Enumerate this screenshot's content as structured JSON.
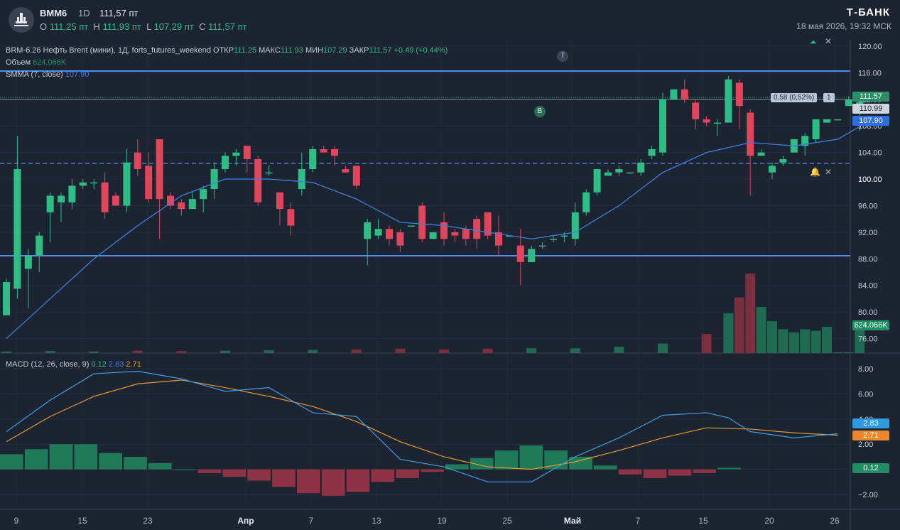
{
  "header": {
    "symbol": "BMM6",
    "timeframe": "1D",
    "last_price": "111,57 пт",
    "ohlc": {
      "o_label": "O",
      "o_value": "111,25 пт",
      "h_label": "H",
      "h_value": "111,93 пт",
      "l_label": "L",
      "l_value": "107,29 пт",
      "c_label": "C",
      "c_value": "111,57 пт"
    },
    "brand": "Т-БАНК",
    "datetime": "18 мая 2026, 19:32 МСК"
  },
  "legend": {
    "main": "BRM-6.26 Нефть Brent (мини), 1Д, forts_futures_weekend",
    "open_label": "ОТКР",
    "open_value": "111.25",
    "high_label": "МАКС",
    "high_value": "111.93",
    "low_label": "МИН",
    "low_value": "107.29",
    "close_label": "ЗАКР",
    "close_value": "111.57",
    "change": "+0.49 (+0.44%)",
    "volume_label": "Объем",
    "volume_value": "624.066K",
    "smma_label": "SMMA (7, close)",
    "smma_value": "107.90",
    "macd_label": "MACD (12, 26, close, 9)",
    "macd_hist": "0.12",
    "macd_line": "2.83",
    "macd_signal": "2.71"
  },
  "price_axis": [
    "120.00",
    "116.00",
    "112.00",
    "108.00",
    "104.00",
    "100.00",
    "96.00",
    "92.00",
    "88.00",
    "84.00",
    "80.00",
    "76.00"
  ],
  "price_tags": {
    "close": "111.57",
    "mid": "110.99",
    "smma": "107.90",
    "volume": "624.066K",
    "spread": "0,58 (0,52%)",
    "spread_count": "1",
    "alert_level": "100.00"
  },
  "macd_axis": [
    "8.00",
    "6.00",
    "4.00",
    "2.00",
    "−2.00"
  ],
  "macd_tags": {
    "line": "2.83",
    "signal": "2.71",
    "hist": "0.12"
  },
  "time_axis": [
    "9",
    "15",
    "23",
    "Апр",
    "7",
    "13",
    "19",
    "25",
    "Май",
    "7",
    "15",
    "20",
    "26"
  ],
  "markers": {
    "t": "T",
    "b": "B"
  },
  "colors": {
    "bg": "#1c2331",
    "up": "#2dbd85",
    "down": "#e0455b",
    "blue": "#3d7fe0",
    "orange": "#e89a2c",
    "level": "#4f8cf0"
  },
  "chart_data": {
    "type": "candlestick",
    "title": "BRM-6.26 Нефть Brent (мини), 1Д, forts_futures_weekend",
    "x_ticks": [
      "9",
      "15",
      "23",
      "Апр",
      "7",
      "13",
      "19",
      "25",
      "Май",
      "7",
      "15",
      "20",
      "26"
    ],
    "ylim": [
      76,
      121
    ],
    "candles": [
      [
        79.5,
        84.5,
        79.5,
        85
      ],
      [
        83.5,
        101.5,
        82,
        106.5
      ],
      [
        86.5,
        88.5,
        80.5,
        89.5
      ],
      [
        88.5,
        91.5,
        86,
        92
      ],
      [
        95,
        97.5,
        90.5,
        98
      ],
      [
        96.5,
        97.5,
        93.5,
        98
      ],
      [
        96.5,
        99,
        95.5,
        100
      ],
      [
        99,
        99.5,
        98.5,
        100
      ],
      [
        99.5,
        99.5,
        98.5,
        100
      ],
      [
        99.5,
        95,
        94,
        101
      ],
      [
        97.5,
        96,
        96,
        98
      ],
      [
        96,
        102.5,
        95,
        104.5
      ],
      [
        104,
        101.5,
        100.5,
        106
      ],
      [
        102,
        97,
        96.5,
        104
      ],
      [
        106,
        97,
        91,
        106
      ],
      [
        97.5,
        96,
        95.5,
        98
      ],
      [
        96.5,
        95.5,
        94.5,
        97
      ],
      [
        95.5,
        97,
        95.5,
        98
      ],
      [
        97,
        98.5,
        95,
        99
      ],
      [
        98.5,
        101.5,
        97,
        102.5
      ],
      [
        101.5,
        103.5,
        101,
        104
      ],
      [
        103.5,
        104,
        102,
        104.5
      ],
      [
        105,
        103,
        101,
        105
      ],
      [
        103,
        96.5,
        96,
        103.5
      ],
      [
        101,
        101,
        100.5,
        102
      ],
      [
        98,
        95.5,
        93,
        98
      ],
      [
        95.5,
        93,
        91.5,
        96.5
      ],
      [
        98.5,
        101.5,
        97.5,
        104
      ],
      [
        101.5,
        104.5,
        101,
        105
      ],
      [
        104.5,
        104,
        104,
        105
      ],
      [
        104.5,
        103.5,
        102,
        105
      ],
      [
        101.5,
        101,
        101,
        102
      ],
      [
        102,
        99,
        98.5,
        102
      ],
      [
        91,
        93.5,
        87,
        94
      ],
      [
        91.5,
        92.5,
        91,
        94
      ],
      [
        92.5,
        91,
        90,
        93
      ],
      [
        92,
        90,
        89,
        92.5
      ],
      [
        93,
        93,
        93,
        93
      ],
      [
        96,
        91,
        90.5,
        96.5
      ],
      [
        91,
        92,
        91,
        92
      ],
      [
        93.5,
        91,
        90,
        95
      ],
      [
        92,
        91.5,
        90.5,
        92.5
      ],
      [
        92.5,
        91,
        90,
        93
      ],
      [
        94,
        91,
        89.5,
        94.5
      ],
      [
        95,
        91.5,
        91,
        95
      ],
      [
        92,
        90,
        88.5,
        94.5
      ],
      [
        91.5,
        91.5,
        91.5,
        91.5
      ],
      [
        90,
        87.5,
        84,
        92.5
      ],
      [
        87.5,
        89.5,
        87.5,
        90
      ],
      [
        90,
        90,
        89.5,
        90.5
      ],
      [
        91,
        91,
        90.5,
        91.5
      ],
      [
        91.5,
        91.5,
        90.5,
        92
      ],
      [
        91,
        95,
        90,
        96.5
      ],
      [
        95,
        98,
        94.5,
        98.5
      ],
      [
        98,
        101.5,
        97.5,
        101.5
      ],
      [
        100.5,
        101,
        100.5,
        101.5
      ],
      [
        101,
        101.5,
        100.5,
        102
      ],
      [
        101,
        101,
        101,
        101
      ],
      [
        101,
        102.5,
        100.5,
        103
      ],
      [
        103.5,
        104.5,
        103,
        105
      ],
      [
        104,
        112,
        103.5,
        113
      ],
      [
        112,
        113.5,
        112,
        113.5
      ],
      [
        113.5,
        112,
        111.5,
        115
      ],
      [
        111.5,
        109,
        107.5,
        112
      ],
      [
        109,
        108.5,
        108,
        109.5
      ],
      [
        108.5,
        108.5,
        106.5,
        109
      ],
      [
        108.5,
        115,
        108.5,
        115.5
      ],
      [
        114.5,
        111,
        107.5,
        115
      ],
      [
        110,
        103.5,
        97.5,
        110.5
      ],
      [
        103.5,
        104,
        103.5,
        104.5
      ],
      [
        101,
        102,
        100,
        102.5
      ],
      [
        102.5,
        103,
        102,
        103.5
      ],
      [
        104,
        106,
        104,
        106
      ],
      [
        105,
        106.5,
        103.5,
        107
      ],
      [
        106,
        109,
        105.5,
        109
      ],
      [
        108.5,
        109,
        108.5,
        109
      ],
      [
        109,
        109,
        109,
        109
      ],
      [
        111,
        112,
        111,
        112.5
      ],
      [
        111.25,
        111.57,
        107.29,
        111.93
      ]
    ],
    "smma": [
      [
        0,
        76
      ],
      [
        4,
        82
      ],
      [
        8,
        88
      ],
      [
        12,
        93
      ],
      [
        16,
        97.5
      ],
      [
        20,
        100
      ],
      [
        24,
        100
      ],
      [
        28,
        99.5
      ],
      [
        32,
        97
      ],
      [
        36,
        93.5
      ],
      [
        40,
        93
      ],
      [
        44,
        92
      ],
      [
        48,
        91
      ],
      [
        52,
        92
      ],
      [
        56,
        96
      ],
      [
        60,
        101
      ],
      [
        64,
        104
      ],
      [
        68,
        105.5
      ],
      [
        72,
        105
      ],
      [
        76,
        106
      ],
      [
        78,
        107.9
      ]
    ],
    "volume_ylim": [
      0,
      1000
    ],
    "volume": [
      [
        0,
        20
      ],
      [
        4,
        25
      ],
      [
        8,
        20
      ],
      [
        12,
        30
      ],
      [
        16,
        25
      ],
      [
        20,
        30
      ],
      [
        24,
        35
      ],
      [
        28,
        40
      ],
      [
        32,
        45
      ],
      [
        36,
        55
      ],
      [
        40,
        45
      ],
      [
        44,
        55
      ],
      [
        48,
        60
      ],
      [
        52,
        60
      ],
      [
        56,
        80
      ],
      [
        60,
        120
      ],
      [
        64,
        240
      ],
      [
        66,
        500
      ],
      [
        67,
        700
      ],
      [
        68,
        1000
      ],
      [
        69,
        580
      ],
      [
        70,
        400
      ],
      [
        71,
        300
      ],
      [
        72,
        260
      ],
      [
        73,
        300
      ],
      [
        74,
        280
      ],
      [
        75,
        330
      ],
      [
        76,
        10
      ],
      [
        77,
        10
      ],
      [
        78,
        300
      ]
    ],
    "macd_ylim": [
      -3,
      8.8
    ],
    "macd_line": [
      [
        0,
        3
      ],
      [
        4,
        5.5
      ],
      [
        8,
        7.6
      ],
      [
        12,
        7.8
      ],
      [
        16,
        7.2
      ],
      [
        20,
        6.2
      ],
      [
        24,
        6.5
      ],
      [
        28,
        4.5
      ],
      [
        32,
        4.2
      ],
      [
        36,
        0.8
      ],
      [
        40,
        0.2
      ],
      [
        44,
        -1
      ],
      [
        48,
        -1
      ],
      [
        52,
        1
      ],
      [
        56,
        2.5
      ],
      [
        60,
        4.3
      ],
      [
        64,
        4.5
      ],
      [
        66,
        4.1
      ],
      [
        68,
        3
      ],
      [
        72,
        2.5
      ],
      [
        76,
        2.83
      ]
    ],
    "macd_signal": [
      [
        0,
        2.2
      ],
      [
        4,
        4.2
      ],
      [
        8,
        5.8
      ],
      [
        12,
        6.8
      ],
      [
        16,
        7.1
      ],
      [
        20,
        6.5
      ],
      [
        24,
        5.8
      ],
      [
        28,
        5
      ],
      [
        32,
        3.8
      ],
      [
        36,
        2.2
      ],
      [
        40,
        1
      ],
      [
        44,
        0.2
      ],
      [
        48,
        0
      ],
      [
        52,
        0.6
      ],
      [
        56,
        1.5
      ],
      [
        60,
        2.5
      ],
      [
        64,
        3.3
      ],
      [
        68,
        3.2
      ],
      [
        72,
        2.9
      ],
      [
        76,
        2.71
      ]
    ],
    "macd_hist": [
      1.2,
      1.6,
      2,
      2,
      1.3,
      1,
      0.5,
      0,
      -0.3,
      -0.6,
      -0.9,
      -1.4,
      -1.9,
      -2.1,
      -1.8,
      -1,
      -0.7,
      -0.2,
      0.4,
      0.9,
      1.5,
      1.9,
      1.5,
      1,
      0.3,
      -0.4,
      -0.7,
      -0.5,
      -0.3,
      0.12
    ]
  }
}
